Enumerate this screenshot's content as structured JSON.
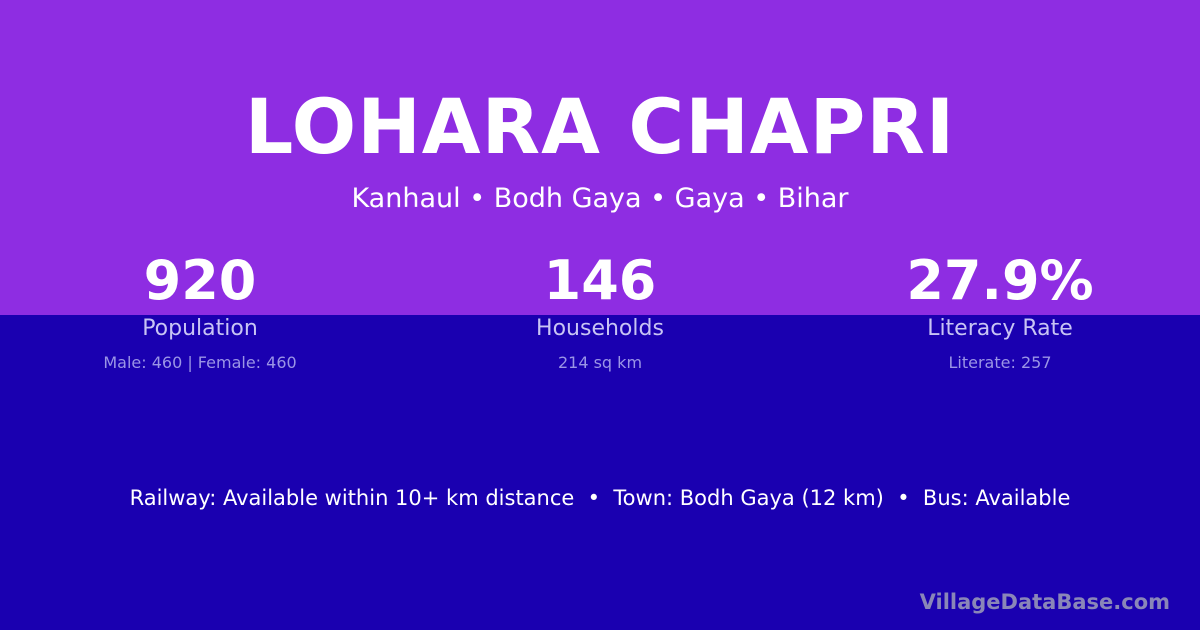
{
  "village": {
    "name": "LOHARA CHAPRI",
    "location": "Kanhaul • Bodh Gaya • Gaya • Bihar"
  },
  "stats": [
    {
      "value": "920",
      "label": "Population",
      "detail": "Male: 460 | Female: 460"
    },
    {
      "value": "146",
      "label": "Households",
      "detail": "214 sq km"
    },
    {
      "value": "27.9%",
      "label": "Literacy Rate",
      "detail": "Literate: 257"
    }
  ],
  "facilities": "Railway: Available within 10+ km distance  •  Town: Bodh Gaya (12 km)  •  Bus: Available",
  "brand": "VillageDataBase.com",
  "colors": {
    "top": "#8e2de2",
    "bottom": "#1a00b0"
  }
}
